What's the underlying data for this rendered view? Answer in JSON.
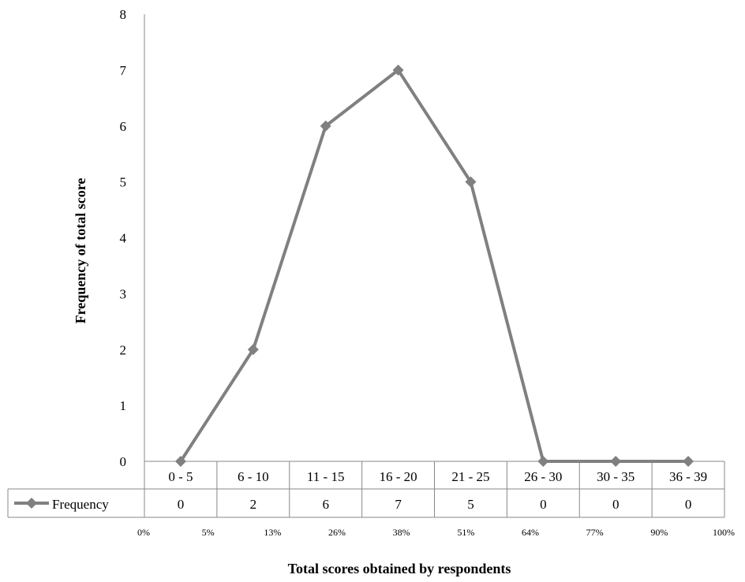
{
  "chart_data": {
    "type": "line",
    "categories": [
      "0 - 5",
      "6 - 10",
      "11 - 15",
      "16 - 20",
      "21 - 25",
      "26 - 30",
      "30 - 35",
      "36 - 39"
    ],
    "series": [
      {
        "name": "Frequency",
        "values": [
          0,
          2,
          6,
          7,
          5,
          0,
          0,
          0
        ]
      }
    ],
    "ylim": [
      0,
      8
    ],
    "yticks": [
      "0",
      "1",
      "2",
      "3",
      "4",
      "5",
      "6",
      "7",
      "8"
    ],
    "ylabel": "Frequency  of  total score",
    "xlabel": "Total scores obtained by respondents",
    "percent_labels": [
      "0%",
      "5%",
      "13%",
      "26%",
      "38%",
      "51%",
      "64%",
      "77%",
      "90%",
      "100%"
    ],
    "grid": false,
    "legend": "data-table",
    "color": "#808080"
  }
}
